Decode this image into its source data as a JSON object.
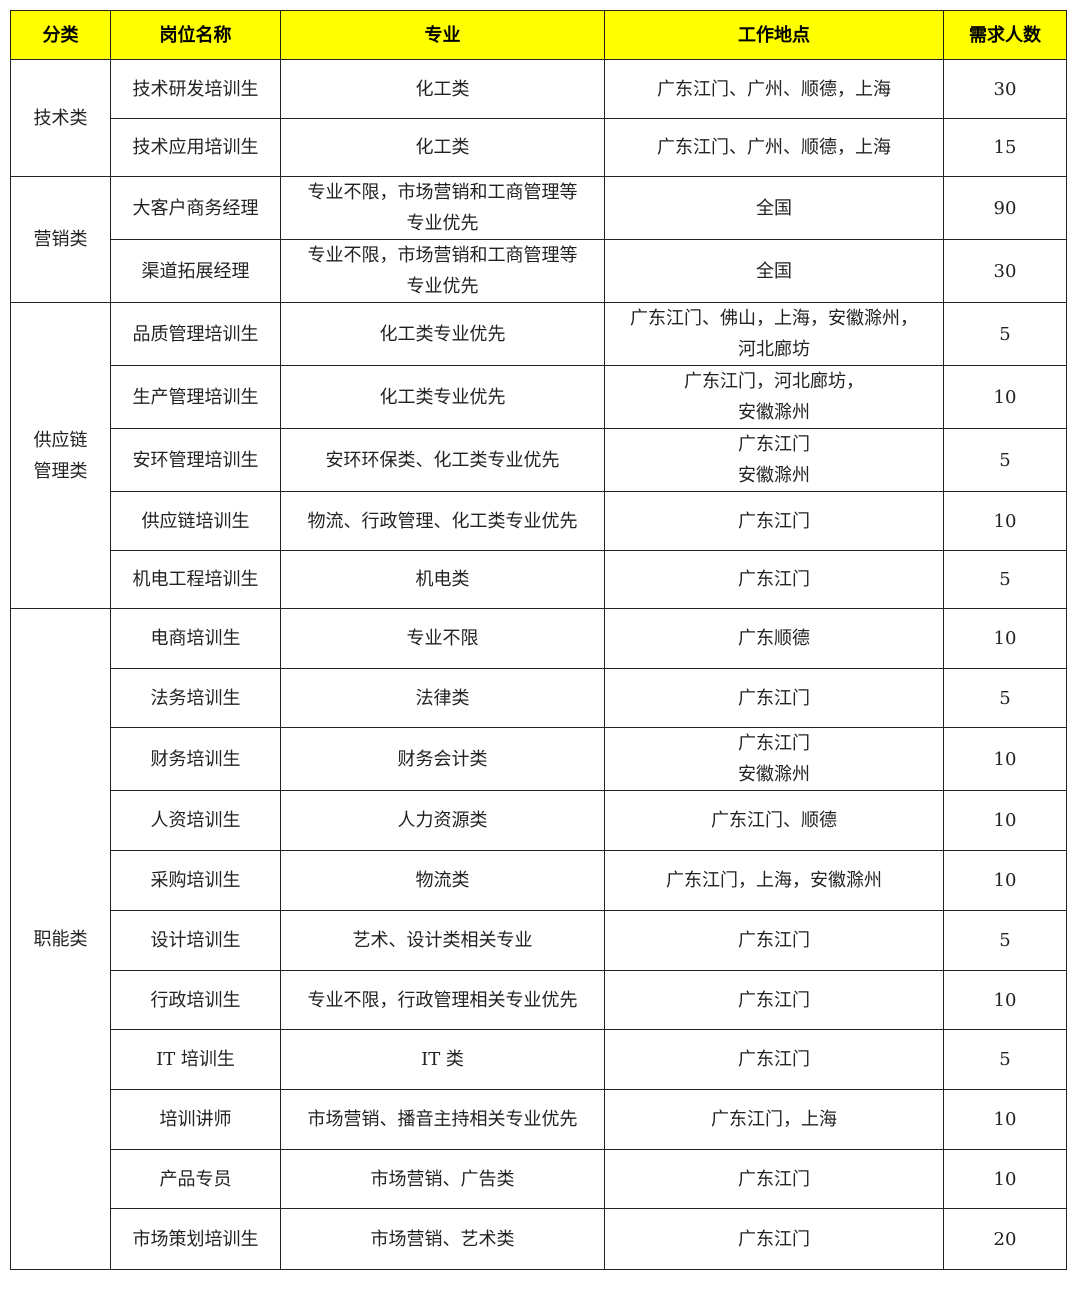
{
  "header_color": "#ffff00",
  "headers": [
    "分类",
    "岗位名称",
    "专业",
    "工作地点",
    "需求人数"
  ],
  "categories": [
    {
      "name": "技术类",
      "rows": [
        {
          "position": "技术研发培训生",
          "major": "化工类",
          "location": "广东江门、广州、顺德，上海",
          "count": "30"
        },
        {
          "position": "技术应用培训生",
          "major": "化工类",
          "location": "广东江门、广州、顺德，上海",
          "count": "15"
        }
      ]
    },
    {
      "name": "营销类",
      "rows": [
        {
          "position": "大客户商务经理",
          "major": "专业不限，市场营销和工商管理等\n专业优先",
          "location": "全国",
          "count": "90"
        },
        {
          "position": "渠道拓展经理",
          "major": "专业不限，市场营销和工商管理等\n专业优先",
          "location": "全国",
          "count": "30"
        }
      ]
    },
    {
      "name": "供应链\n管理类",
      "rows": [
        {
          "position": "品质管理培训生",
          "major": "化工类专业优先",
          "location": "广东江门、佛山，上海，安徽滁州，\n河北廊坊",
          "count": "5"
        },
        {
          "position": "生产管理培训生",
          "major": "化工类专业优先",
          "location": "广东江门，河北廊坊，\n安徽滁州",
          "count": "10"
        },
        {
          "position": "安环管理培训生",
          "major": "安环环保类、化工类专业优先",
          "location": "广东江门\n安徽滁州",
          "count": "5"
        },
        {
          "position": "供应链培训生",
          "major": "物流、行政管理、化工类专业优先",
          "location": "广东江门",
          "count": "10"
        },
        {
          "position": "机电工程培训生",
          "major": "机电类",
          "location": "广东江门",
          "count": "5"
        }
      ]
    },
    {
      "name": "职能类",
      "rows": [
        {
          "position": "电商培训生",
          "major": "专业不限",
          "location": "广东顺德",
          "count": "10"
        },
        {
          "position": "法务培训生",
          "major": "法律类",
          "location": "广东江门",
          "count": "5"
        },
        {
          "position": "财务培训生",
          "major": "财务会计类",
          "location": "广东江门\n安徽滁州",
          "count": "10"
        },
        {
          "position": "人资培训生",
          "major": "人力资源类",
          "location": "广东江门、顺德",
          "count": "10"
        },
        {
          "position": "采购培训生",
          "major": "物流类",
          "location": "广东江门，上海，安徽滁州",
          "count": "10"
        },
        {
          "position": "设计培训生",
          "major": "艺术、设计类相关专业",
          "location": "广东江门",
          "count": "5"
        },
        {
          "position": "行政培训生",
          "major": "专业不限，行政管理相关专业优先",
          "location": "广东江门",
          "count": "10"
        },
        {
          "position": "IT 培训生",
          "major": "IT 类",
          "location": "广东江门",
          "count": "5"
        },
        {
          "position": "培训讲师",
          "major": "市场营销、播音主持相关专业优先",
          "location": "广东江门，上海",
          "count": "10"
        },
        {
          "position": "产品专员",
          "major": "市场营销、广告类",
          "location": "广东江门",
          "count": "10"
        },
        {
          "position": "市场策划培训生",
          "major": "市场营销、艺术类",
          "location": "广东江门",
          "count": "20"
        }
      ]
    }
  ]
}
